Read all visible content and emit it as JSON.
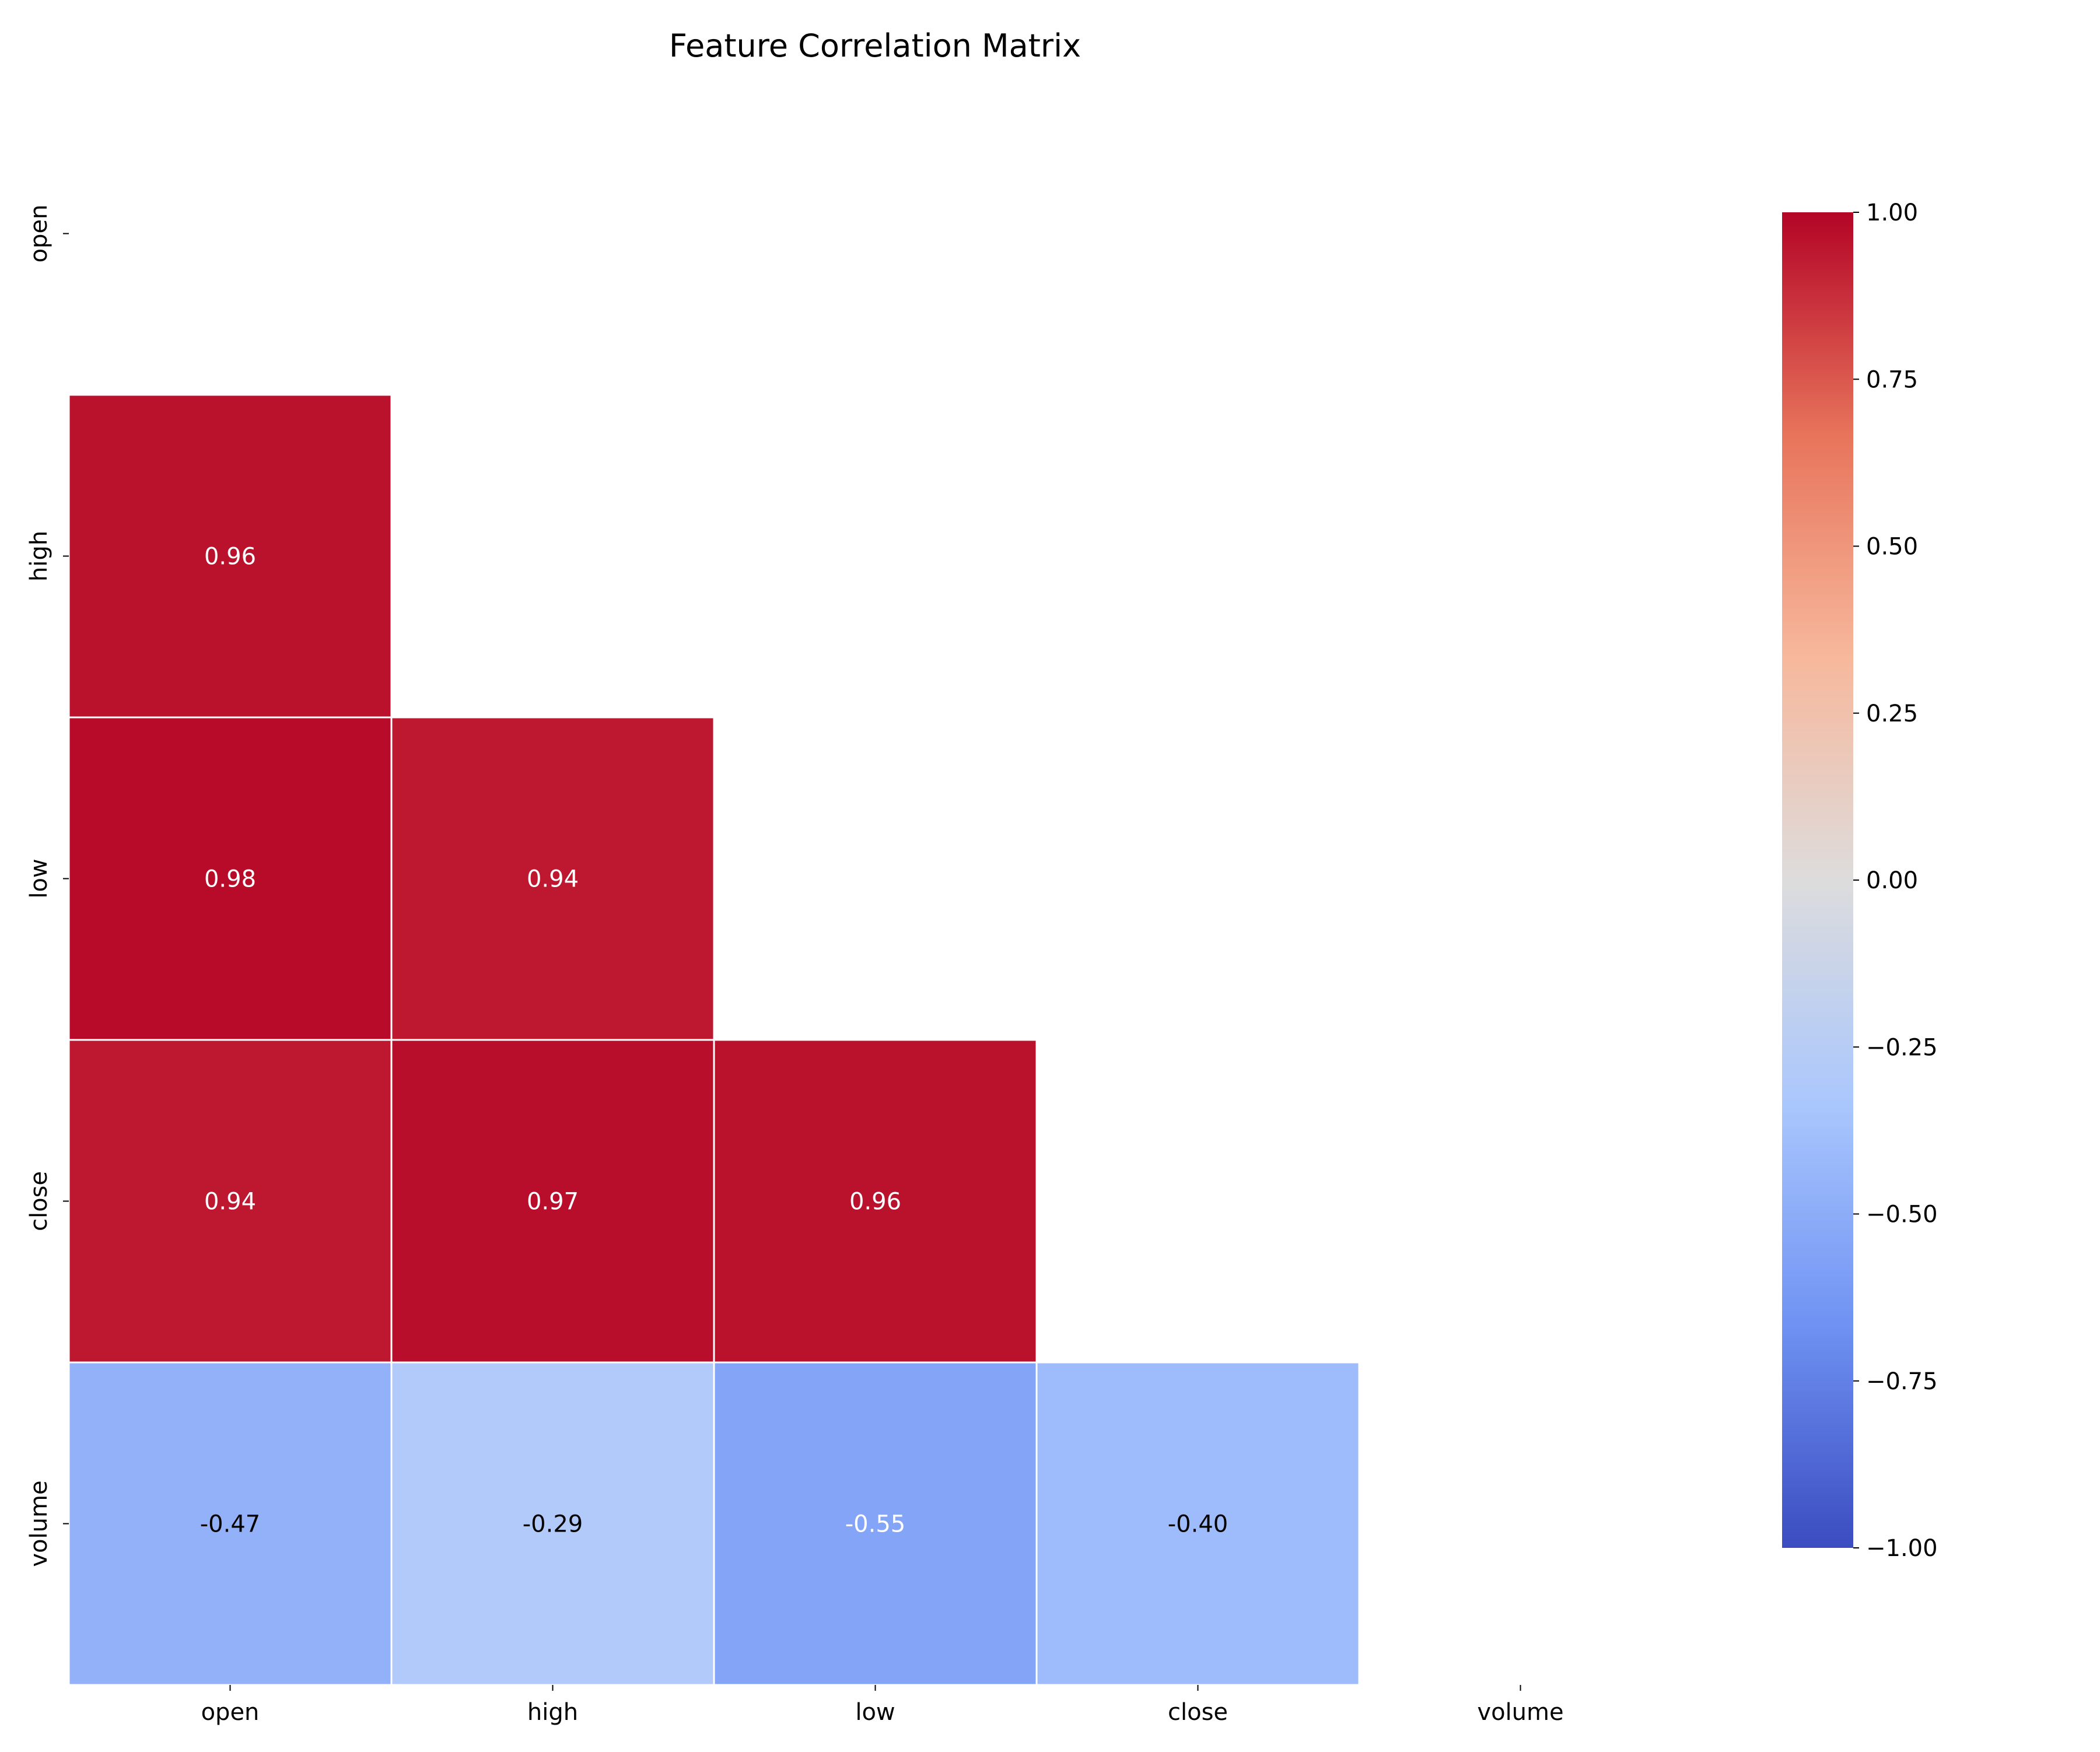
{
  "chart_data": {
    "type": "heatmap",
    "title": "Feature Correlation Matrix",
    "xlabel": "",
    "ylabel": "",
    "x_categories": [
      "open",
      "high",
      "low",
      "close",
      "volume"
    ],
    "y_categories": [
      "open",
      "high",
      "low",
      "close",
      "volume"
    ],
    "mask": "upper triangle including diagonal",
    "values": [
      [
        null,
        null,
        null,
        null,
        null
      ],
      [
        0.96,
        null,
        null,
        null,
        null
      ],
      [
        0.98,
        0.94,
        null,
        null,
        null
      ],
      [
        0.94,
        0.97,
        0.96,
        null,
        null
      ],
      [
        -0.47,
        -0.29,
        -0.55,
        -0.4,
        null
      ]
    ],
    "value_labels": [
      [
        null,
        null,
        null,
        null,
        null
      ],
      [
        "0.96",
        null,
        null,
        null,
        null
      ],
      [
        "0.98",
        "0.94",
        null,
        null,
        null
      ],
      [
        "0.94",
        "0.97",
        "0.96",
        null,
        null
      ],
      [
        "-0.47",
        "-0.29",
        "-0.55",
        "-0.40",
        null
      ]
    ],
    "colormap": "coolwarm",
    "vmin": -1.0,
    "vmax": 1.0,
    "colorbar_ticks": [
      1.0,
      0.75,
      0.5,
      0.25,
      0.0,
      -0.25,
      -0.5,
      -0.75,
      -1.0
    ],
    "colorbar_tick_labels": [
      "1.00",
      "0.75",
      "0.50",
      "0.25",
      "0.00",
      "−0.25",
      "−0.50",
      "−0.75",
      "−1.00"
    ],
    "colorbar_placement": "right",
    "grid": false
  },
  "colors": {
    "background": "#ffffff",
    "text": "#000000",
    "cell_border": "#ffffff",
    "label_on_dark": "#ffffff",
    "label_on_light": "#000000",
    "coolwarm_stops": [
      "#3b4cc0",
      "#6f92f3",
      "#aac7fd",
      "#dddcdc",
      "#f7b89c",
      "#e7745b",
      "#b40426"
    ]
  }
}
